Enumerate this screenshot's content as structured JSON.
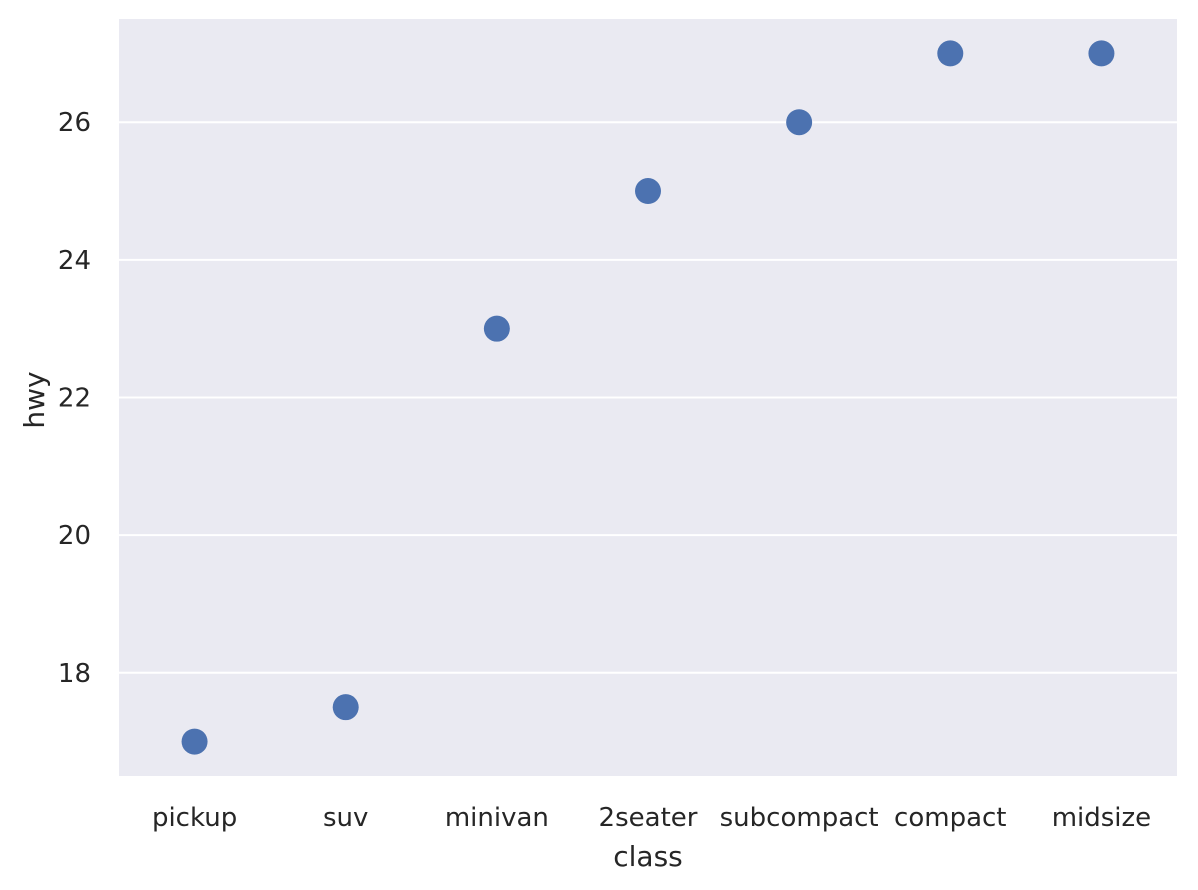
{
  "chart_data": {
    "type": "scatter",
    "title": "",
    "xlabel": "class",
    "ylabel": "hwy",
    "categories": [
      "pickup",
      "suv",
      "minivan",
      "2seater",
      "subcompact",
      "compact",
      "midsize"
    ],
    "values": [
      17,
      17.5,
      23,
      25,
      26,
      27,
      27
    ],
    "ylim": [
      16.5,
      27.5
    ],
    "yticks": [
      18,
      20,
      22,
      24,
      26
    ],
    "grid": true,
    "colors": {
      "background": "#eaeaf2",
      "grid": "#ffffff",
      "marker": "#4c72b0"
    }
  }
}
